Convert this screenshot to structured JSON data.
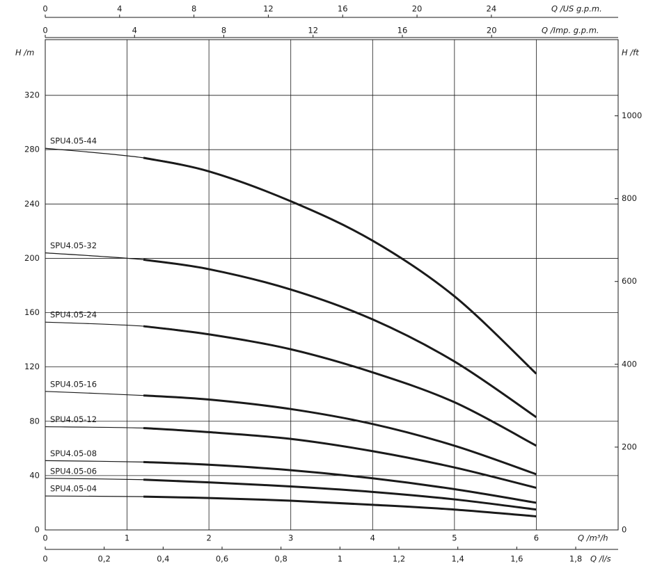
{
  "chart_data": {
    "type": "line",
    "x_label": "Q /m³/h",
    "y_label": "H /m",
    "y2_label": "H /ft",
    "x_ls_label": "Q /l/s",
    "x_usgpm_label": "Q /US g.p.m.",
    "x_impgpm_label": "Q /Imp. g.p.m.",
    "x": [
      0,
      1.2,
      2,
      3,
      4,
      5,
      6
    ],
    "duty_from": 1.2,
    "series": [
      {
        "name": "SPU4.05-44",
        "color": "#1a1a1a",
        "values": [
          281,
          274,
          264,
          242,
          213,
          172,
          115
        ]
      },
      {
        "name": "SPU4.05-32",
        "color": "#1a1a1a",
        "values": [
          204,
          199,
          192,
          177,
          155,
          124,
          83
        ]
      },
      {
        "name": "SPU4.05-24",
        "color": "#1a1a1a",
        "values": [
          153,
          150,
          144,
          133,
          116,
          94,
          62
        ]
      },
      {
        "name": "SPU4.05-16",
        "color": "#1a1a1a",
        "values": [
          102,
          99,
          96,
          89,
          78,
          62,
          41
        ]
      },
      {
        "name": "SPU4.05-12",
        "color": "#1a1a1a",
        "values": [
          76,
          75,
          72,
          67,
          58,
          46,
          31
        ]
      },
      {
        "name": "SPU4.05-08",
        "color": "#1a1a1a",
        "values": [
          51,
          50,
          48,
          44,
          38,
          30,
          20
        ]
      },
      {
        "name": "SPU4.05-06",
        "color": "#1a1a1a",
        "values": [
          38,
          37,
          35,
          32,
          28,
          22.5,
          15
        ]
      },
      {
        "name": "SPU4.05-04",
        "color": "#1a1a1a",
        "values": [
          25,
          24.5,
          23.5,
          21.5,
          18.5,
          15,
          10
        ]
      }
    ],
    "xlim": [
      0,
      7
    ],
    "xticks": [
      0,
      1,
      2,
      3,
      4,
      5,
      6
    ],
    "ylim": [
      0,
      361
    ],
    "yticks": [
      0,
      40,
      80,
      120,
      160,
      200,
      240,
      280,
      320
    ],
    "y2lim": [
      0,
      1184
    ],
    "y2ticks": [
      0,
      200,
      400,
      600,
      800,
      1000
    ],
    "x_ls_lim": [
      0,
      1.944
    ],
    "x_ls_ticks": [
      0,
      {
        "value": 0.2,
        "label": "0,2"
      },
      {
        "value": 0.4,
        "label": "0,4"
      },
      {
        "value": 0.6,
        "label": "0,6"
      },
      {
        "value": 0.8,
        "label": "0,8"
      },
      1,
      {
        "value": 1.2,
        "label": "1,2"
      },
      {
        "value": 1.4,
        "label": "1,4"
      },
      {
        "value": 1.6,
        "label": "1,6"
      },
      {
        "value": 1.8,
        "label": "1,8"
      }
    ],
    "x_usgpm_lim": [
      0,
      30.82
    ],
    "x_usgpm_ticks": [
      0,
      4,
      8,
      12,
      16,
      20,
      24
    ],
    "x_impgpm_lim": [
      0,
      25.67
    ],
    "x_impgpm_ticks": [
      0,
      4,
      8,
      12,
      16,
      20
    ],
    "grid": true
  }
}
